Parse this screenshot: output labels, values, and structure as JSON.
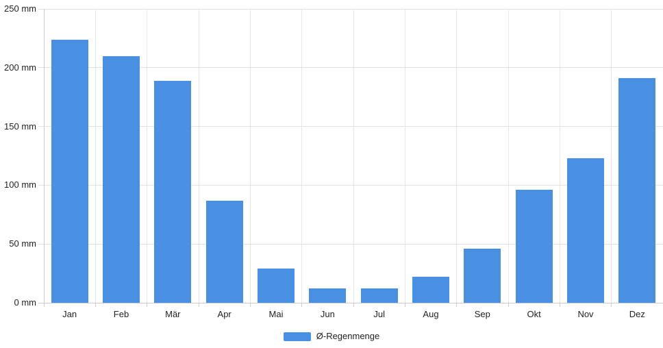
{
  "chart_data": {
    "type": "bar",
    "title": "",
    "categories": [
      "Jan",
      "Feb",
      "Mär",
      "Apr",
      "Mai",
      "Jun",
      "Jul",
      "Aug",
      "Sep",
      "Okt",
      "Nov",
      "Dez"
    ],
    "values": [
      224,
      210,
      189,
      87,
      29,
      12,
      12,
      22,
      46,
      96,
      123,
      191
    ],
    "series_name": "Ø-Regenmenge",
    "unit": "mm",
    "yticks": [
      0,
      50,
      100,
      150,
      200,
      250
    ],
    "ytick_labels": [
      "0 mm",
      "50 mm",
      "100 mm",
      "150 mm",
      "200 mm",
      "250 mm"
    ],
    "ylim": [
      0,
      250
    ],
    "xlabel": "",
    "ylabel": "",
    "grid": true,
    "legend_position": "bottom",
    "bar_color": "#4A90E2",
    "gridline_color": "#e3e3e3",
    "axis_color": "#cccccc",
    "text_color": "#222222"
  },
  "legend": {
    "label": "Ø-Regenmenge"
  }
}
